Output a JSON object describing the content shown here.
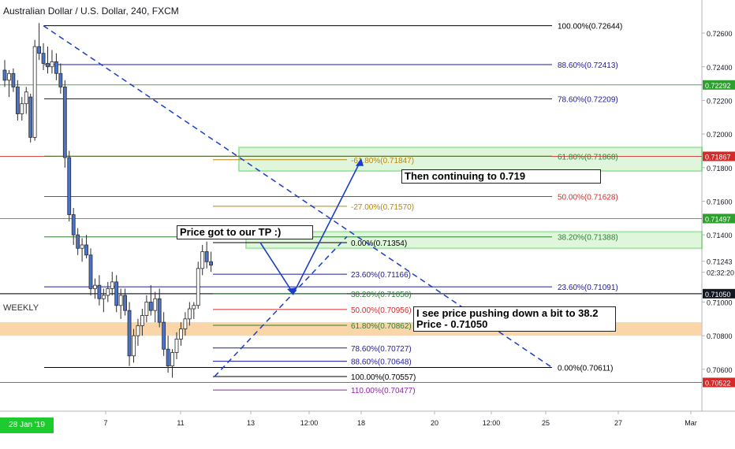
{
  "chart_data": {
    "type": "candlestick",
    "title": "Australian Dollar / U.S. Dollar, 240, FXCM",
    "ylim": [
      0.7044,
      0.7268
    ],
    "y_ticks": [
      "0.72600",
      "0.72400",
      "0.72200",
      "0.72000",
      "0.71800",
      "0.71600",
      "0.71400",
      "0.71243",
      "02:32:20",
      "0.71000",
      "0.70800",
      "0.70600"
    ],
    "x_ticks": [
      "28 Jan '19  00:00",
      "7",
      "11",
      "13",
      "12:00",
      "18",
      "20",
      "12:00",
      "25",
      "27",
      "Mar"
    ],
    "price_tags": [
      {
        "label": "0.72292",
        "value": 0.72292,
        "color": "#2e9e2e"
      },
      {
        "label": "0.71867",
        "value": 0.71867,
        "color": "#d42a2a"
      },
      {
        "label": "0.71497",
        "value": 0.71497,
        "color": "#2e9e2e"
      },
      {
        "label": "0.71050",
        "value": 0.7105,
        "color": "#131722"
      },
      {
        "label": "0.70522",
        "value": 0.70522,
        "color": "#d42a2a"
      }
    ],
    "fib_large": [
      {
        "label": "100.00%(0.72644)",
        "value": 0.72644,
        "color": "#000000"
      },
      {
        "label": "88.60%(0.72413)",
        "value": 0.72413,
        "color": "#1a1aa0"
      },
      {
        "label": "78.60%(0.72209)",
        "value": 0.72209,
        "color": "#1a1aa0"
      },
      {
        "label": "61.80%(0.71868)",
        "value": 0.71868,
        "color": "#2e7d32"
      },
      {
        "label": "50.00%(0.71628)",
        "value": 0.71628,
        "color": "#d42a2a"
      },
      {
        "label": "38.20%(0.71388)",
        "value": 0.71388,
        "color": "#2e7d32"
      },
      {
        "label": "23.60%(0.71091)",
        "value": 0.71091,
        "color": "#1a1aa0"
      },
      {
        "label": "0.00%(0.70611)",
        "value": 0.70611,
        "color": "#000000"
      }
    ],
    "fib_small": [
      {
        "label": "-61.80%(0.71847)",
        "value": 0.71847,
        "color": "#b8860b"
      },
      {
        "label": "-27.00%(0.71570)",
        "value": 0.7157,
        "color": "#b8860b"
      },
      {
        "label": "0.00%(0.71354)",
        "value": 0.71354,
        "color": "#000000"
      },
      {
        "label": "23.60%(0.71166)",
        "value": 0.71166,
        "color": "#1a1aa0"
      },
      {
        "label": "38.20%(0.71050)",
        "value": 0.7105,
        "color": "#2e7d32"
      },
      {
        "label": "50.00%(0.70956)",
        "value": 0.70956,
        "color": "#d42a2a"
      },
      {
        "label": "61.80%(0.70862)",
        "value": 0.70862,
        "color": "#2e7d32"
      },
      {
        "label": "78.60%(0.70727)",
        "value": 0.70727,
        "color": "#1a1aa0"
      },
      {
        "label": "88.60%(0.70648)",
        "value": 0.70648,
        "color": "#1a1aa0"
      },
      {
        "label": "100.00%(0.70557)",
        "value": 0.70557,
        "color": "#000000"
      },
      {
        "label": "110.00%(0.70477)",
        "value": 0.70477,
        "color": "#8e24aa"
      }
    ],
    "notes": {
      "tp": "Price got to our TP :)",
      "continue": "Then continuing to 0.719",
      "pullback_line1": "I see price pushing down a bit to 38.2",
      "pullback_line2": "Price - 0.71050",
      "weekly": "WEEKLY"
    },
    "candles": [
      [
        0.7238,
        0.7244,
        0.7228,
        0.7232
      ],
      [
        0.7232,
        0.7238,
        0.7222,
        0.7236
      ],
      [
        0.7236,
        0.7239,
        0.7225,
        0.7228
      ],
      [
        0.7228,
        0.7232,
        0.7208,
        0.7212
      ],
      [
        0.7212,
        0.7222,
        0.7208,
        0.7218
      ],
      [
        0.7218,
        0.7228,
        0.7212,
        0.7225
      ],
      [
        0.7222,
        0.7224,
        0.7195,
        0.7198
      ],
      [
        0.7198,
        0.7256,
        0.7196,
        0.7252
      ],
      [
        0.7252,
        0.7266,
        0.7244,
        0.7248
      ],
      [
        0.7248,
        0.7254,
        0.7238,
        0.7242
      ],
      [
        0.7242,
        0.7252,
        0.7236,
        0.724
      ],
      [
        0.724,
        0.725,
        0.7236,
        0.7243
      ],
      [
        0.7243,
        0.7248,
        0.7232,
        0.7236
      ],
      [
        0.7236,
        0.7242,
        0.7224,
        0.7228
      ],
      [
        0.7228,
        0.7232,
        0.718,
        0.7186
      ],
      [
        0.7186,
        0.719,
        0.7148,
        0.7152
      ],
      [
        0.7152,
        0.7156,
        0.7134,
        0.714
      ],
      [
        0.714,
        0.7144,
        0.7128,
        0.7132
      ],
      [
        0.7132,
        0.7138,
        0.7124,
        0.7134
      ],
      [
        0.7134,
        0.714,
        0.7126,
        0.7128
      ],
      [
        0.7128,
        0.7132,
        0.7104,
        0.7108
      ],
      [
        0.7108,
        0.7114,
        0.7102,
        0.711
      ],
      [
        0.711,
        0.7116,
        0.7098,
        0.7102
      ],
      [
        0.7102,
        0.7108,
        0.7094,
        0.7104
      ],
      [
        0.7104,
        0.7112,
        0.71,
        0.7108
      ],
      [
        0.7108,
        0.7118,
        0.7104,
        0.7112
      ],
      [
        0.7112,
        0.7116,
        0.7094,
        0.7098
      ],
      [
        0.7098,
        0.7108,
        0.709,
        0.7104
      ],
      [
        0.7104,
        0.7108,
        0.7092,
        0.7095
      ],
      [
        0.7095,
        0.71,
        0.7062,
        0.7068
      ],
      [
        0.7068,
        0.7084,
        0.7064,
        0.708
      ],
      [
        0.708,
        0.709,
        0.7074,
        0.7086
      ],
      [
        0.7086,
        0.7096,
        0.708,
        0.7092
      ],
      [
        0.7092,
        0.7104,
        0.7088,
        0.71
      ],
      [
        0.71,
        0.711,
        0.7092,
        0.7095
      ],
      [
        0.7095,
        0.7106,
        0.7088,
        0.7102
      ],
      [
        0.7102,
        0.7108,
        0.7085,
        0.7088
      ],
      [
        0.7088,
        0.7094,
        0.7068,
        0.7072
      ],
      [
        0.7072,
        0.708,
        0.7058,
        0.7062
      ],
      [
        0.7062,
        0.7072,
        0.7055,
        0.707
      ],
      [
        0.707,
        0.7082,
        0.7066,
        0.7078
      ],
      [
        0.7078,
        0.7088,
        0.7074,
        0.7084
      ],
      [
        0.7084,
        0.7094,
        0.708,
        0.709
      ],
      [
        0.709,
        0.71,
        0.7086,
        0.7096
      ],
      [
        0.7096,
        0.71,
        0.709,
        0.7098
      ],
      [
        0.7098,
        0.7124,
        0.7096,
        0.712
      ],
      [
        0.712,
        0.7134,
        0.7116,
        0.713
      ],
      [
        0.713,
        0.7136,
        0.712,
        0.7124
      ],
      [
        0.7124,
        0.713,
        0.7118,
        0.7122
      ]
    ]
  }
}
